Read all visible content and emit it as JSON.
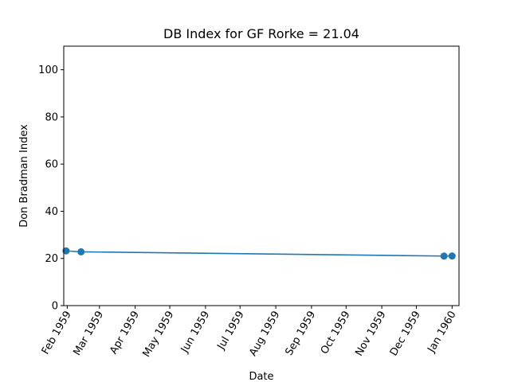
{
  "chart_data": {
    "type": "line",
    "title": "DB Index for GF Rorke = 21.04",
    "xlabel": "Date",
    "ylabel": "Don Bradman Index",
    "ylim": [
      0,
      110
    ],
    "xlim": [
      "1959-01-29",
      "1960-01-07"
    ],
    "yticks": [
      0,
      20,
      40,
      60,
      80,
      100
    ],
    "xticks": [
      {
        "date": "1959-02-01",
        "label": "Feb 1959"
      },
      {
        "date": "1959-03-01",
        "label": "Mar 1959"
      },
      {
        "date": "1959-04-01",
        "label": "Apr 1959"
      },
      {
        "date": "1959-05-01",
        "label": "May 1959"
      },
      {
        "date": "1959-06-01",
        "label": "Jun 1959"
      },
      {
        "date": "1959-07-01",
        "label": "Jul 1959"
      },
      {
        "date": "1959-08-01",
        "label": "Aug 1959"
      },
      {
        "date": "1959-09-01",
        "label": "Sep 1959"
      },
      {
        "date": "1959-10-01",
        "label": "Oct 1959"
      },
      {
        "date": "1959-11-01",
        "label": "Nov 1959"
      },
      {
        "date": "1959-12-01",
        "label": "Dec 1959"
      },
      {
        "date": "1960-01-01",
        "label": "Jan 1960"
      }
    ],
    "grid": false,
    "series": [
      {
        "color": "#1f77b4",
        "points": [
          {
            "x": "1959-01-31",
            "y": 23.2
          },
          {
            "x": "1959-02-13",
            "y": 22.8
          },
          {
            "x": "1959-12-25",
            "y": 21.0
          },
          {
            "x": "1960-01-01",
            "y": 21.04
          }
        ]
      }
    ]
  }
}
